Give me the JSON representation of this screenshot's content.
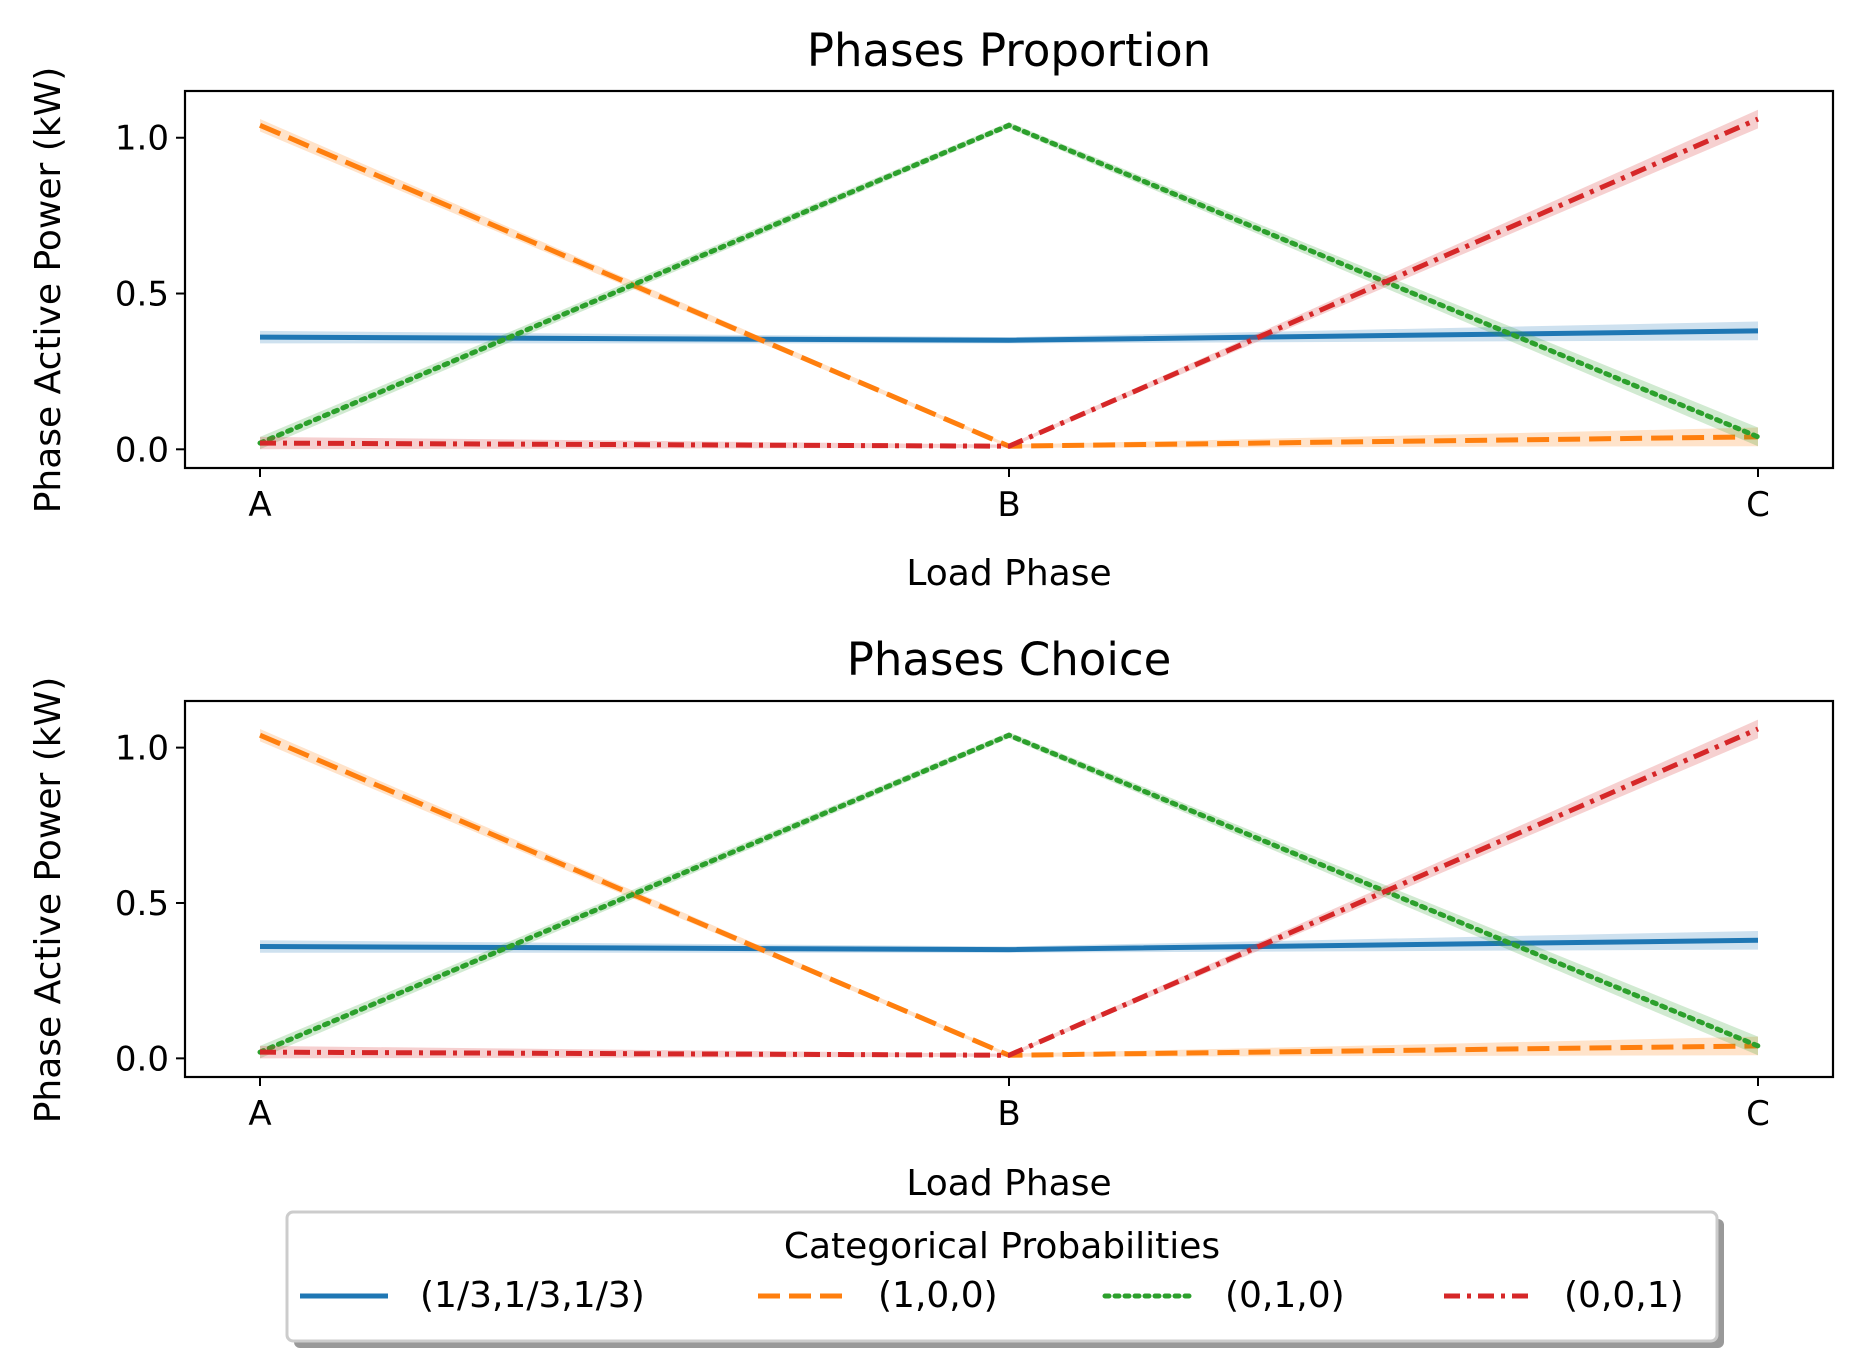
{
  "legend": {
    "title": "Categorical Probabilities",
    "placement": "bottom-center, outside axes, with shadow",
    "series": [
      {
        "name": "(1/3,1/3,1/3)",
        "color": "#1f77b4",
        "style": "solid"
      },
      {
        "name": "(1,0,0)",
        "color": "#ff7f0e",
        "style": "dashed"
      },
      {
        "name": "(0,1,0)",
        "color": "#2ca02c",
        "style": "dotted"
      },
      {
        "name": "(0,0,1)",
        "color": "#d62728",
        "style": "dashdot"
      }
    ]
  },
  "chart_data": [
    {
      "type": "line",
      "title": "Phases Proportion",
      "xlabel": "Load Phase",
      "ylabel": "Phase Active Power (kW)",
      "categories": [
        "A",
        "B",
        "C"
      ],
      "ylim": [
        -0.06,
        1.15
      ],
      "yticks": [
        0.0,
        0.5,
        1.0
      ],
      "ytick_labels": [
        "0.0",
        "0.5",
        "1.0"
      ],
      "grid": false,
      "confidence_band": true,
      "series": [
        {
          "name": "(1/3,1/3,1/3)",
          "values": [
            0.36,
            0.35,
            0.38
          ],
          "band": [
            0.02,
            0.01,
            0.03
          ]
        },
        {
          "name": "(1,0,0)",
          "values": [
            1.04,
            0.01,
            0.04
          ],
          "band": [
            0.02,
            0.005,
            0.03
          ]
        },
        {
          "name": "(0,1,0)",
          "values": [
            0.02,
            1.04,
            0.04
          ],
          "band": [
            0.02,
            0.01,
            0.03
          ]
        },
        {
          "name": "(0,0,1)",
          "values": [
            0.02,
            0.01,
            1.06
          ],
          "band": [
            0.02,
            0.005,
            0.03
          ]
        }
      ]
    },
    {
      "type": "line",
      "title": "Phases Choice",
      "xlabel": "Load Phase",
      "ylabel": "Phase Active Power (kW)",
      "categories": [
        "A",
        "B",
        "C"
      ],
      "ylim": [
        -0.06,
        1.15
      ],
      "yticks": [
        0.0,
        0.5,
        1.0
      ],
      "ytick_labels": [
        "0.0",
        "0.5",
        "1.0"
      ],
      "grid": false,
      "confidence_band": true,
      "series": [
        {
          "name": "(1/3,1/3,1/3)",
          "values": [
            0.36,
            0.35,
            0.38
          ],
          "band": [
            0.02,
            0.01,
            0.03
          ]
        },
        {
          "name": "(1,0,0)",
          "values": [
            1.04,
            0.01,
            0.04
          ],
          "band": [
            0.02,
            0.005,
            0.03
          ]
        },
        {
          "name": "(0,1,0)",
          "values": [
            0.02,
            1.04,
            0.04
          ],
          "band": [
            0.02,
            0.01,
            0.03
          ]
        },
        {
          "name": "(0,0,1)",
          "values": [
            0.02,
            0.01,
            1.06
          ],
          "band": [
            0.02,
            0.005,
            0.03
          ]
        }
      ]
    }
  ]
}
